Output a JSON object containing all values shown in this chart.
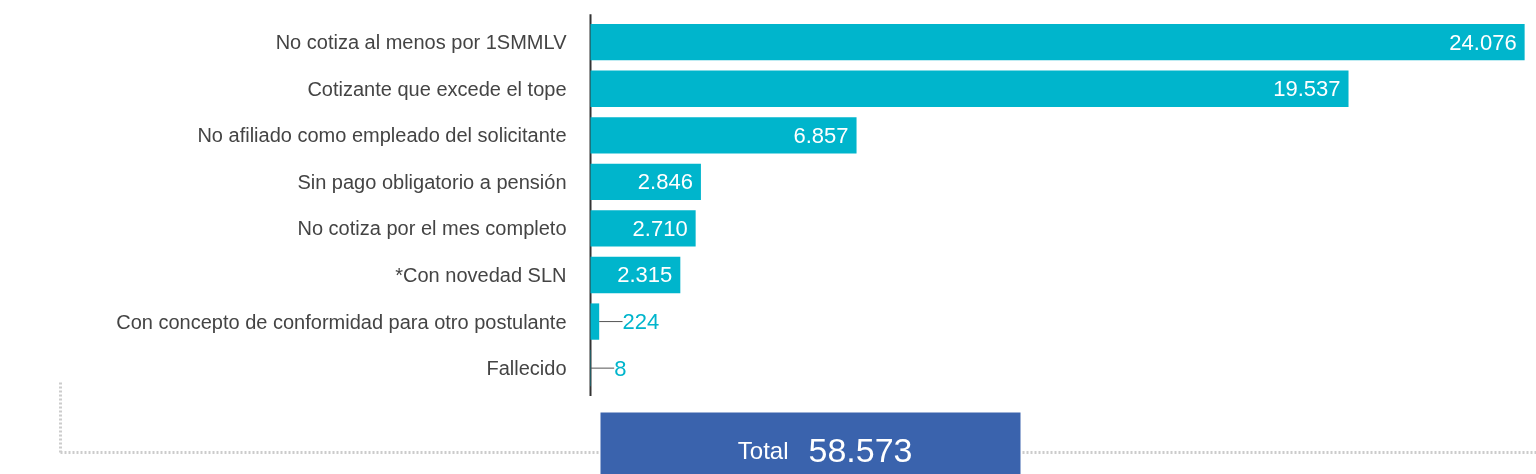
{
  "chart_data": {
    "type": "bar",
    "orientation": "horizontal",
    "categories": [
      "No cotiza al menos por 1SMMLV",
      "Cotizante que excede el tope",
      "No afiliado como empleado del solicitante",
      "Sin pago obligatorio a pensión",
      "No cotiza por el mes completo",
      "*Con novedad SLN",
      "Con concepto de conformidad para otro postulante",
      "Fallecido"
    ],
    "values": [
      24076,
      19537,
      6857,
      2846,
      2710,
      2315,
      224,
      8
    ],
    "value_labels": [
      "24.076",
      "19.537",
      "6.857",
      "2.846",
      "2.710",
      "2.315",
      "224",
      "8"
    ],
    "color": "#00b5cc",
    "grid": false,
    "annotations": [
      "Total",
      "58.573"
    ]
  }
}
